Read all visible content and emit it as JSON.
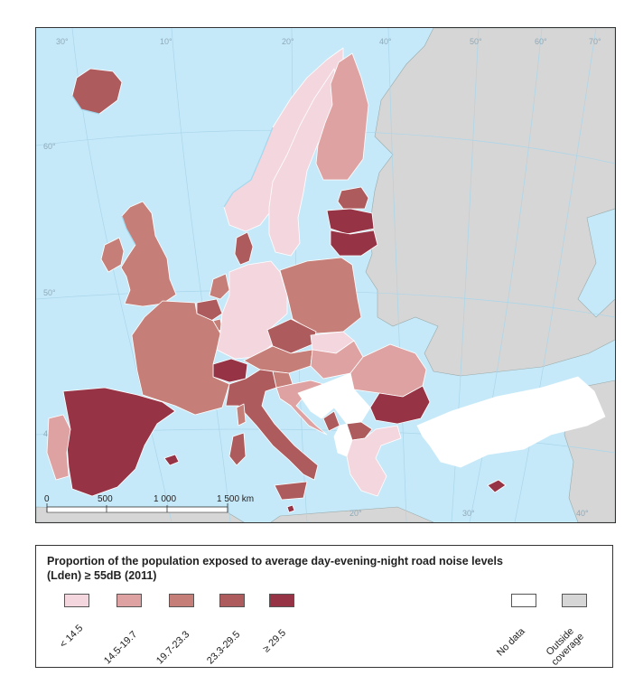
{
  "map": {
    "graticule": {
      "longitudes": [
        "30°",
        "10°",
        "20°",
        "40°",
        "50°",
        "60°",
        "70°",
        "20°",
        "30°",
        "40°"
      ],
      "latitudes": [
        "60°",
        "50°",
        "40°"
      ]
    },
    "scale_bar": {
      "labels": [
        "0",
        "500",
        "1 000",
        "1 500 km"
      ]
    },
    "colors": {
      "sea": "#c6e9f9",
      "outside": "#d6d6d6",
      "no_data": "#ffffff",
      "border": "#ffffff",
      "coast": "#8fcfe8"
    },
    "regions": [
      {
        "name": "Iceland",
        "class": 3
      },
      {
        "name": "Ireland",
        "class": 2
      },
      {
        "name": "United Kingdom",
        "class": 2
      },
      {
        "name": "Norway",
        "class": 0
      },
      {
        "name": "Sweden",
        "class": 0
      },
      {
        "name": "Finland",
        "class": 1
      },
      {
        "name": "Denmark",
        "class": 3
      },
      {
        "name": "Estonia",
        "class": 3
      },
      {
        "name": "Latvia",
        "class": 4
      },
      {
        "name": "Lithuania",
        "class": 4
      },
      {
        "name": "Netherlands",
        "class": 2
      },
      {
        "name": "Belgium",
        "class": 3
      },
      {
        "name": "Luxembourg",
        "class": 2
      },
      {
        "name": "Germany",
        "class": 0
      },
      {
        "name": "Poland",
        "class": 2
      },
      {
        "name": "Czechia",
        "class": 3
      },
      {
        "name": "Slovakia",
        "class": 0
      },
      {
        "name": "Austria",
        "class": 2
      },
      {
        "name": "Switzerland",
        "class": 4
      },
      {
        "name": "France",
        "class": 2
      },
      {
        "name": "Hungary",
        "class": 1
      },
      {
        "name": "Slovenia",
        "class": 2
      },
      {
        "name": "Croatia",
        "class": 1
      },
      {
        "name": "Romania",
        "class": 1
      },
      {
        "name": "Bulgaria",
        "class": 4
      },
      {
        "name": "Serbia",
        "class": "no_data"
      },
      {
        "name": "Bosnia and Herzegovina",
        "class": "no_data"
      },
      {
        "name": "Montenegro",
        "class": 3
      },
      {
        "name": "Albania",
        "class": "no_data"
      },
      {
        "name": "North Macedonia",
        "class": 3
      },
      {
        "name": "Greece",
        "class": 0
      },
      {
        "name": "Turkey",
        "class": "no_data"
      },
      {
        "name": "Italy",
        "class": 3
      },
      {
        "name": "Spain",
        "class": 4
      },
      {
        "name": "Portugal",
        "class": 1
      },
      {
        "name": "Malta",
        "class": 4
      },
      {
        "name": "Cyprus",
        "class": 4
      }
    ]
  },
  "legend": {
    "title": "Proportion of the population exposed to average day-evening-night road noise levels\n(Lden) ≥ 55dB (2011)",
    "classes": [
      {
        "label": "< 14.5",
        "color": "#f4d6df"
      },
      {
        "label": "14.5-19.7",
        "color": "#dfa2a2"
      },
      {
        "label": "19.7-23.3",
        "color": "#c57e78"
      },
      {
        "label": "23.3-29.5",
        "color": "#ad5b5d"
      },
      {
        "label": "≥ 29.5",
        "color": "#963446"
      }
    ],
    "extra": [
      {
        "label": "No data",
        "color": "#ffffff"
      },
      {
        "label": "Outside\ncoverage",
        "color": "#d6d6d6"
      }
    ]
  }
}
